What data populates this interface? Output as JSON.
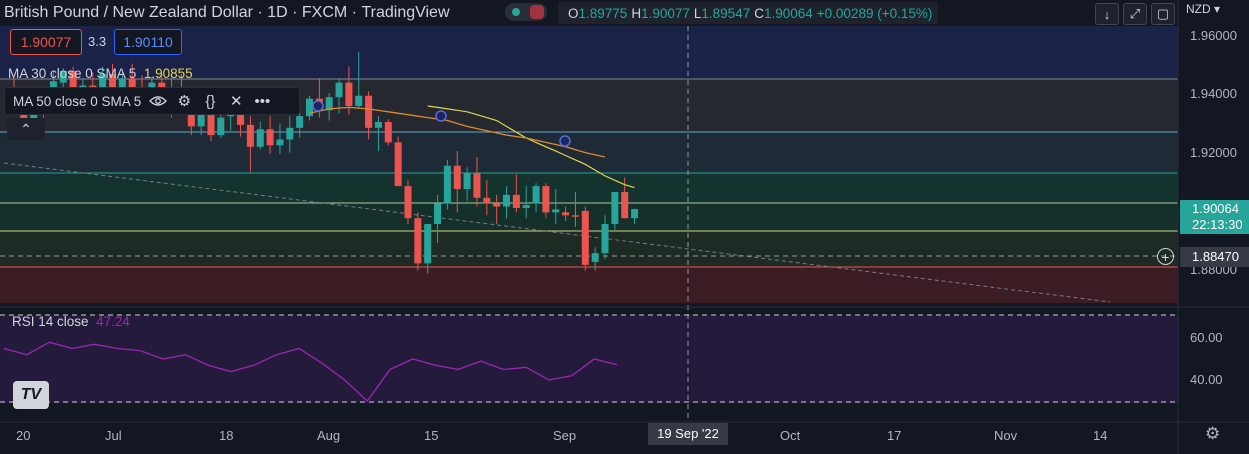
{
  "header": {
    "pair": "British Pound / New Zealand Dollar",
    "interval": "1D",
    "source": "FXCM",
    "platform": "TradingView",
    "ohlc": {
      "o_label": "O",
      "o": "1.89775",
      "h_label": "H",
      "h": "1.90077",
      "l_label": "L",
      "l": "1.89547",
      "c_label": "C",
      "c": "1.90064",
      "change": "+0.00289 (+0.15%)"
    }
  },
  "trade": {
    "sell": "1.90077",
    "spread": "3.3",
    "buy": "1.90110"
  },
  "indicators": {
    "ma30": {
      "label": "MA 30 close 0 SMA 5",
      "value": "1.90855"
    },
    "ma50": {
      "label": "MA 50 close 0 SMA 5"
    },
    "rsi": {
      "label": "RSI 14 close",
      "value": "47.24"
    }
  },
  "price_axis": {
    "currency": "NZD",
    "ticks": [
      "1.96000",
      "1.94000",
      "1.92000",
      "1.88000"
    ],
    "current_price": "1.90064",
    "countdown": "22:13:30",
    "crosshair_price": "1.88470"
  },
  "rsi_axis": {
    "ticks": [
      "60.00",
      "40.00"
    ]
  },
  "time_axis": {
    "ticks": [
      "20",
      "Jul",
      "18",
      "Aug",
      "15",
      "Sep",
      "Oct",
      "17",
      "Nov",
      "14"
    ],
    "crosshair_date": "19 Sep '22"
  },
  "colors": {
    "background": "#131722",
    "up": "#26a69a",
    "down": "#ef5350",
    "ma30": "#e2d44a",
    "ma50": "#e08a2a",
    "rsi": "#9c27b0"
  },
  "icons": [
    "eye-icon",
    "settings-icon",
    "source-code-icon",
    "close-icon",
    "more-icon",
    "collapse-icon",
    "down-arrow-icon",
    "fullscreen-icon",
    "screenshot-icon",
    "crosshair-plus-icon",
    "gear-icon",
    "tradingview-logo-icon"
  ],
  "chart_data": {
    "type": "candlestick",
    "series": [
      {
        "name": "MA 30 close 0 SMA 5",
        "values": [
          1.936,
          1.9355,
          1.935,
          1.9345,
          1.934,
          1.933,
          1.932,
          1.931,
          1.929,
          1.927,
          1.925,
          1.9235,
          1.922,
          1.9205,
          1.919,
          1.9175,
          1.916,
          1.914,
          1.912,
          1.9105,
          1.909,
          1.908
        ]
      },
      {
        "name": "MA 50 close 0 SMA 5",
        "values": [
          1.9335,
          1.935,
          1.9355,
          1.935,
          1.934,
          1.933,
          1.932,
          1.931,
          1.929,
          1.9275,
          1.926,
          1.925,
          1.9235,
          1.922,
          1.92,
          1.9185
        ]
      },
      {
        "name": "RSI 14 close",
        "values": [
          55,
          52,
          58,
          55,
          57,
          55,
          54,
          50,
          52,
          47,
          44,
          47,
          52,
          55,
          48,
          40,
          30,
          45,
          50,
          47,
          45,
          49,
          45,
          46,
          40,
          42,
          50,
          47.24
        ]
      }
    ],
    "candles": [
      [
        1.9395,
        1.9455,
        1.9335,
        1.9345
      ],
      [
        1.9345,
        1.9395,
        1.929,
        1.931
      ],
      [
        1.931,
        1.9355,
        1.926,
        1.9345
      ],
      [
        1.934,
        1.942,
        1.932,
        1.941
      ],
      [
        1.941,
        1.9475,
        1.9375,
        1.9445
      ],
      [
        1.944,
        1.949,
        1.9395,
        1.948
      ],
      [
        1.948,
        1.9495,
        1.9375,
        1.939
      ],
      [
        1.939,
        1.9455,
        1.9345,
        1.943
      ],
      [
        1.943,
        1.9475,
        1.935,
        1.9365
      ],
      [
        1.937,
        1.9495,
        1.936,
        1.947
      ],
      [
        1.947,
        1.9505,
        1.9385,
        1.9405
      ],
      [
        1.9405,
        1.9475,
        1.937,
        1.9455
      ],
      [
        1.9455,
        1.9505,
        1.939,
        1.9415
      ],
      [
        1.9415,
        1.9465,
        1.935,
        1.9375
      ],
      [
        1.9375,
        1.946,
        1.9345,
        1.944
      ],
      [
        1.944,
        1.947,
        1.936,
        1.938
      ],
      [
        1.938,
        1.9455,
        1.932,
        1.942
      ],
      [
        1.942,
        1.947,
        1.935,
        1.936
      ],
      [
        1.936,
        1.941,
        1.926,
        1.929
      ],
      [
        1.929,
        1.9345,
        1.926,
        1.933
      ],
      [
        1.933,
        1.9375,
        1.924,
        1.926
      ],
      [
        1.926,
        1.9375,
        1.925,
        1.932
      ],
      [
        1.9325,
        1.9365,
        1.9275,
        1.935
      ],
      [
        1.935,
        1.939,
        1.9255,
        1.9295
      ],
      [
        1.9295,
        1.9325,
        1.9135,
        1.922
      ],
      [
        1.922,
        1.9305,
        1.921,
        1.928
      ],
      [
        1.928,
        1.9325,
        1.9195,
        1.9225
      ],
      [
        1.9225,
        1.93,
        1.9195,
        1.9245
      ],
      [
        1.9245,
        1.9325,
        1.92,
        1.9285
      ],
      [
        1.9285,
        1.935,
        1.925,
        1.9325
      ],
      [
        1.9325,
        1.9395,
        1.931,
        1.9385
      ],
      [
        1.9385,
        1.9455,
        1.932,
        1.9345
      ],
      [
        1.9345,
        1.9405,
        1.931,
        1.939
      ],
      [
        1.939,
        1.9455,
        1.9335,
        1.944
      ],
      [
        1.944,
        1.9495,
        1.933,
        1.936
      ],
      [
        1.936,
        1.9545,
        1.935,
        1.9395
      ],
      [
        1.9395,
        1.941,
        1.9245,
        1.9285
      ],
      [
        1.9285,
        1.9325,
        1.9205,
        1.9305
      ],
      [
        1.9305,
        1.9315,
        1.9225,
        1.9235
      ],
      [
        1.9235,
        1.9255,
        1.9085,
        1.9085
      ],
      [
        1.9085,
        1.9105,
        1.8955,
        1.8975
      ],
      [
        1.8975,
        1.8995,
        1.8795,
        1.882
      ],
      [
        1.882,
        1.8955,
        1.8785,
        1.8955
      ],
      [
        1.8955,
        1.9055,
        1.889,
        1.9025
      ],
      [
        1.9025,
        1.9175,
        1.9005,
        1.9155
      ],
      [
        1.9155,
        1.9205,
        1.8995,
        1.9075
      ],
      [
        1.9075,
        1.915,
        1.9035,
        1.913
      ],
      [
        1.913,
        1.9185,
        1.9015,
        1.9045
      ],
      [
        1.9045,
        1.9105,
        1.8985,
        1.9025
      ],
      [
        1.9025,
        1.9055,
        1.8955,
        1.9015
      ],
      [
        1.9015,
        1.9085,
        1.8975,
        1.9055
      ],
      [
        1.9055,
        1.9125,
        1.8995,
        1.901
      ],
      [
        1.901,
        1.9085,
        1.8975,
        1.902
      ],
      [
        1.9025,
        1.9095,
        1.8995,
        1.9085
      ],
      [
        1.9085,
        1.9095,
        1.8975,
        1.8995
      ],
      [
        1.8995,
        1.9075,
        1.8955,
        1.9005
      ],
      [
        1.8995,
        1.9015,
        1.8965,
        1.8985
      ],
      [
        1.8985,
        1.9065,
        1.8945,
        1.898
      ],
      [
        1.9,
        1.9015,
        1.8795,
        1.8815
      ],
      [
        1.8825,
        1.8875,
        1.8795,
        1.8855
      ],
      [
        1.8855,
        1.8985,
        1.8835,
        1.8955
      ],
      [
        1.8955,
        1.9065,
        1.8935,
        1.9065
      ],
      [
        1.9065,
        1.9115,
        1.8975,
        1.8975
      ],
      [
        1.8975,
        1.9008,
        1.8955,
        1.9006
      ]
    ]
  }
}
